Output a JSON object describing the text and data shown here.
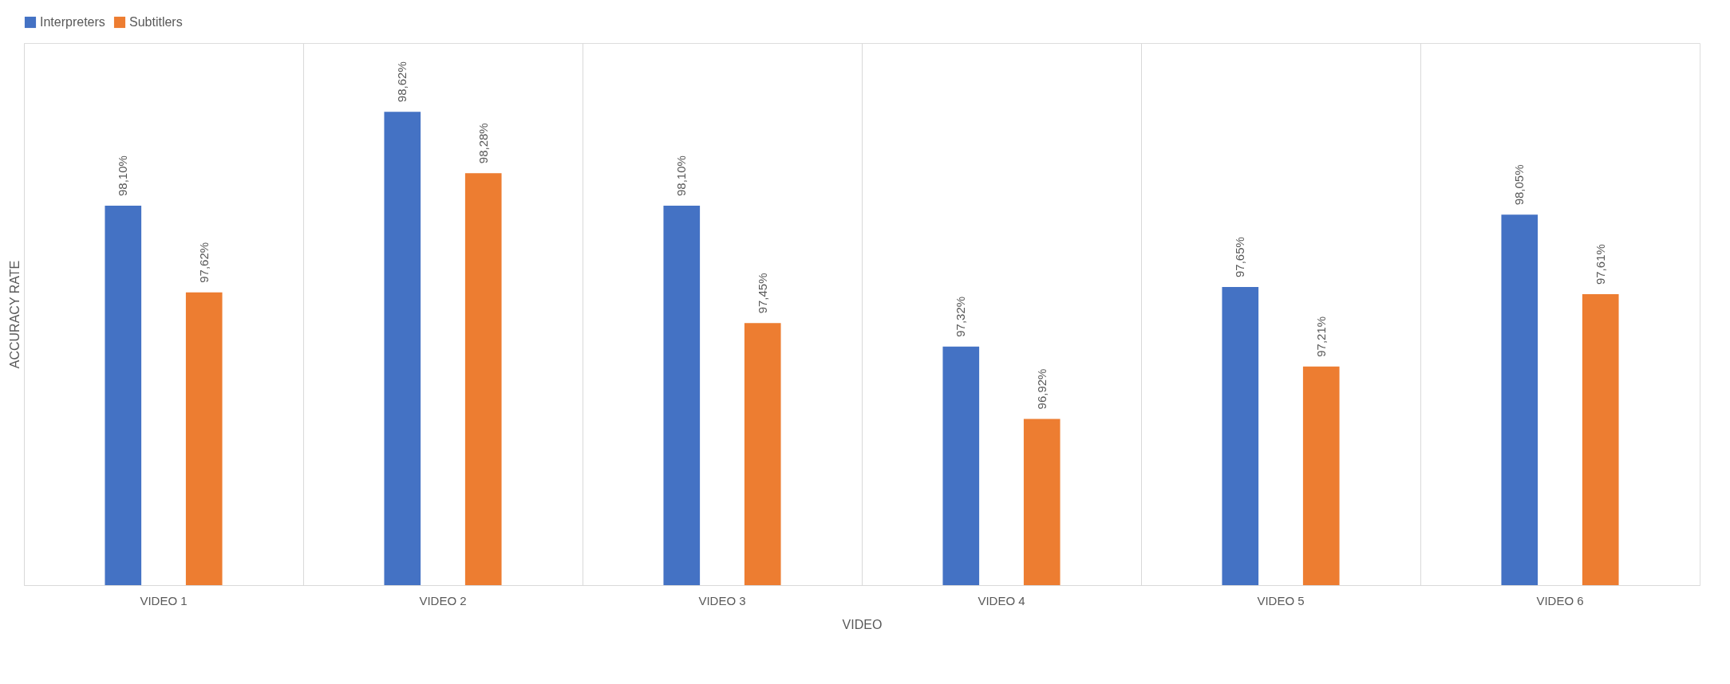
{
  "chart_data": {
    "type": "bar",
    "xlabel": "VIDEO",
    "ylabel": "ACCURACY RATE",
    "categories": [
      "VIDEO 1",
      "VIDEO 2",
      "VIDEO 3",
      "VIDEO 4",
      "VIDEO 5",
      "VIDEO 6"
    ],
    "series": [
      {
        "name": "Interpreters",
        "color": "#4472c4",
        "values": [
          98.1,
          98.62,
          98.1,
          97.32,
          97.65,
          98.05
        ],
        "value_labels": [
          "98,10%",
          "98,62%",
          "98,10%",
          "97,32%",
          "97,65%",
          "98,05%"
        ]
      },
      {
        "name": "Subtitlers",
        "color": "#ed7d31",
        "values": [
          97.62,
          98.28,
          97.45,
          96.92,
          97.21,
          97.61
        ],
        "value_labels": [
          "97,62%",
          "98,28%",
          "97,45%",
          "96,92%",
          "97,21%",
          "97,61%"
        ]
      }
    ],
    "ylim": [
      96,
      99
    ],
    "tick_labels": "x",
    "grid": "x",
    "legend": "top"
  }
}
